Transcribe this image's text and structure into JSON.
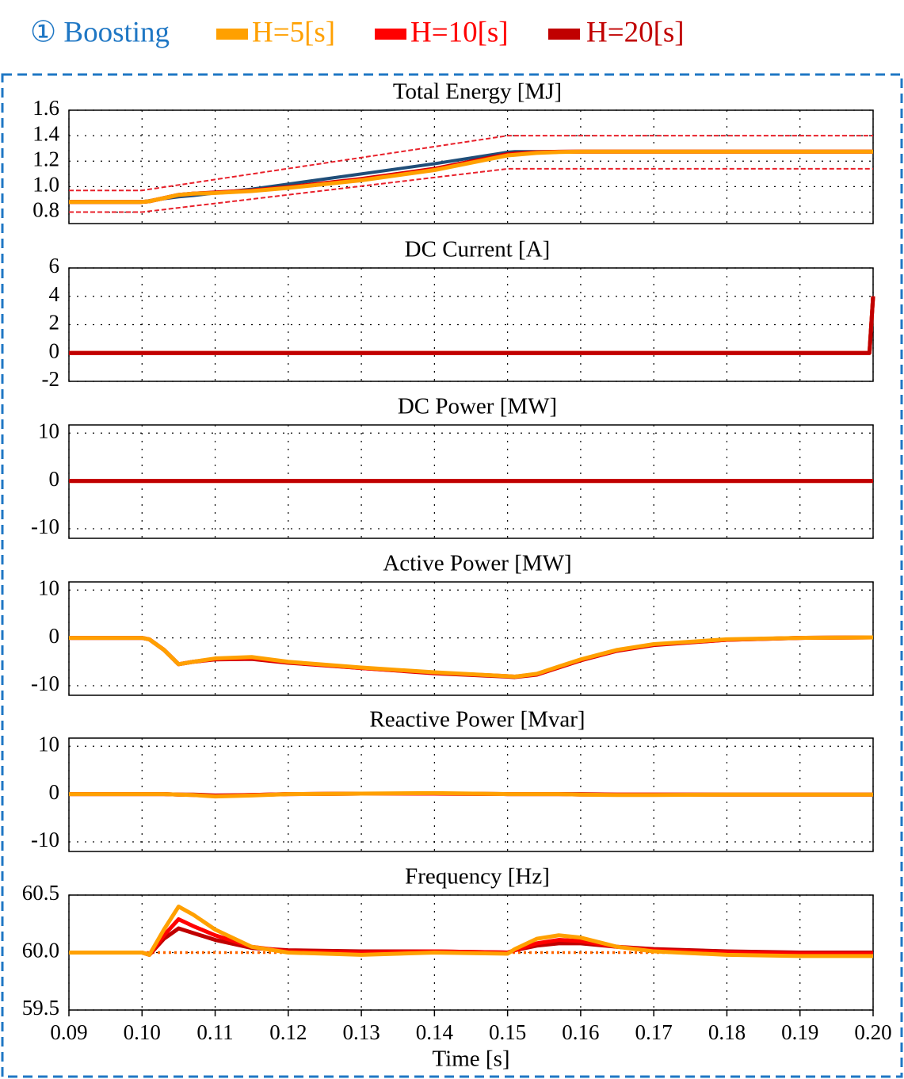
{
  "legend_title": "① Boosting",
  "chart_data": [
    {
      "type": "line",
      "title": "Total Energy [MJ]",
      "x": [
        0.09,
        0.1,
        0.101,
        0.103,
        0.105,
        0.107,
        0.11,
        0.115,
        0.12,
        0.13,
        0.14,
        0.15,
        0.151,
        0.154,
        0.157,
        0.16,
        0.165,
        0.17,
        0.18,
        0.19,
        0.2
      ],
      "series": [
        {
          "name": "H=5[s]",
          "color": "#ffa000",
          "values": [
            0.88,
            0.88,
            0.885,
            0.91,
            0.935,
            0.945,
            0.95,
            0.965,
            0.99,
            1.05,
            1.13,
            1.245,
            1.25,
            1.265,
            1.272,
            1.275,
            1.275,
            1.275,
            1.275,
            1.275,
            1.275
          ]
        },
        {
          "name": "H=10[s]",
          "color": "#ff0000",
          "values": [
            0.88,
            0.88,
            0.885,
            0.91,
            0.935,
            0.945,
            0.952,
            0.968,
            0.993,
            1.055,
            1.135,
            1.25,
            1.255,
            1.268,
            1.273,
            1.275,
            1.275,
            1.275,
            1.275,
            1.275,
            1.275
          ]
        },
        {
          "name": "H=20[s]",
          "color": "#c00000",
          "values": [
            0.88,
            0.88,
            0.885,
            0.91,
            0.935,
            0.945,
            0.954,
            0.97,
            0.996,
            1.06,
            1.14,
            1.255,
            1.26,
            1.27,
            1.274,
            1.275,
            1.275,
            1.275,
            1.275,
            1.275,
            1.275
          ]
        },
        {
          "color": "#1f4e79",
          "values": [
            0.88,
            0.88,
            0.89,
            0.905,
            0.92,
            0.93,
            0.95,
            0.98,
            1.02,
            1.1,
            1.18,
            1.27,
            1.275,
            1.275,
            1.275,
            1.275,
            1.275,
            1.275,
            1.275,
            1.275,
            1.275
          ]
        },
        {
          "color": "#e8202a",
          "style": "dashed",
          "values": [
            0.97,
            0.97,
            0.979,
            0.996,
            1.013,
            1.03,
            1.056,
            1.099,
            1.142,
            1.228,
            1.314,
            1.4,
            1.4,
            1.4,
            1.4,
            1.4,
            1.4,
            1.4,
            1.4,
            1.4,
            1.4
          ]
        },
        {
          "color": "#e8202a",
          "style": "dashed",
          "values": [
            0.8,
            0.8,
            0.807,
            0.82,
            0.834,
            0.848,
            0.868,
            0.902,
            0.936,
            1.004,
            1.072,
            1.14,
            1.14,
            1.14,
            1.14,
            1.14,
            1.14,
            1.14,
            1.14,
            1.14,
            1.14
          ]
        }
      ],
      "xlim": [
        0.09,
        0.2
      ],
      "xticks": [
        0.09,
        {
          "value": 0.1,
          "label": "0.10"
        },
        0.11,
        0.12,
        0.13,
        0.14,
        0.15,
        0.16,
        0.17,
        0.18,
        0.19,
        {
          "value": 0.2,
          "label": "0.20"
        }
      ],
      "ylim": [
        0.71,
        1.6
      ],
      "yticks": [
        0.8,
        {
          "value": 1,
          "label": "1.0"
        },
        1.2,
        1.4,
        1.6
      ],
      "grid": true
    },
    {
      "type": "line",
      "title": "DC Current [A]",
      "x": [
        0.09,
        0.1995,
        0.2
      ],
      "series": [
        {
          "color": "#c00000",
          "values": [
            0,
            0,
            4
          ]
        },
        {
          "color": "#ff0000",
          "values": [
            0,
            0,
            4
          ]
        },
        {
          "color": "#ffa000",
          "values": [
            0,
            0,
            4
          ]
        }
      ],
      "xlim": [
        0.09,
        0.2
      ],
      "xticks": [
        0.09,
        {
          "value": 0.1,
          "label": "0.10"
        },
        0.11,
        0.12,
        0.13,
        0.14,
        0.15,
        0.16,
        0.17,
        0.18,
        0.19,
        {
          "value": 0.2,
          "label": "0.20"
        }
      ],
      "ylim": [
        -2,
        6
      ],
      "yticks": [
        -2,
        0,
        2,
        4,
        6
      ],
      "grid": true
    },
    {
      "type": "line",
      "title": "DC Power [MW]",
      "x": [
        0.09,
        0.2
      ],
      "series": [
        {
          "color": "#c00000",
          "values": [
            0,
            0
          ]
        },
        {
          "color": "#ff0000",
          "values": [
            0,
            0
          ]
        },
        {
          "color": "#ffa000",
          "values": [
            0,
            0
          ]
        }
      ],
      "xlim": [
        0.09,
        0.2
      ],
      "xticks": [
        0.09,
        {
          "value": 0.1,
          "label": "0.10"
        },
        0.11,
        0.12,
        0.13,
        0.14,
        0.15,
        0.16,
        0.17,
        0.18,
        0.19,
        {
          "value": 0.2,
          "label": "0.20"
        }
      ],
      "ylim": [
        -12,
        11.7
      ],
      "yticks": [
        -10,
        0,
        10
      ],
      "grid": true
    },
    {
      "type": "line",
      "title": "Active Power [MW]",
      "x": [
        0.09,
        0.1,
        0.101,
        0.103,
        0.105,
        0.107,
        0.11,
        0.115,
        0.12,
        0.13,
        0.14,
        0.15,
        0.151,
        0.154,
        0.157,
        0.16,
        0.165,
        0.17,
        0.18,
        0.19,
        0.2
      ],
      "series": [
        {
          "color": "#ffa000",
          "values": [
            0,
            0,
            -0.3,
            -2.5,
            -5.5,
            -5,
            -4.3,
            -4,
            -5,
            -6.2,
            -7.2,
            -8,
            -8.1,
            -7.5,
            -6,
            -4.5,
            -2.5,
            -1.3,
            -0.3,
            0,
            0.1
          ]
        },
        {
          "color": "#ff0000",
          "values": [
            0,
            0,
            -0.3,
            -2.5,
            -5.5,
            -5,
            -4.4,
            -4.2,
            -5.1,
            -6.3,
            -7.3,
            -8,
            -8.1,
            -7.6,
            -6.1,
            -4.6,
            -2.6,
            -1.4,
            -0.4,
            0,
            0.1
          ]
        },
        {
          "color": "#c00000",
          "values": [
            0,
            0,
            -0.3,
            -2.5,
            -5.5,
            -5,
            -4.5,
            -4.4,
            -5.2,
            -6.3,
            -7.4,
            -8.1,
            -8.2,
            -7.7,
            -6.2,
            -4.7,
            -2.7,
            -1.5,
            -0.4,
            0,
            0.1
          ]
        }
      ],
      "xlim": [
        0.09,
        0.2
      ],
      "xticks": [
        0.09,
        {
          "value": 0.1,
          "label": "0.10"
        },
        0.11,
        0.12,
        0.13,
        0.14,
        0.15,
        0.16,
        0.17,
        0.18,
        0.19,
        {
          "value": 0.2,
          "label": "0.20"
        }
      ],
      "ylim": [
        -12,
        11.7
      ],
      "yticks": [
        -10,
        0,
        10
      ],
      "grid": true
    },
    {
      "type": "line",
      "title": "Reactive Power [Mvar]",
      "x": [
        0.09,
        0.1,
        0.101,
        0.103,
        0.105,
        0.107,
        0.11,
        0.115,
        0.12,
        0.13,
        0.14,
        0.15,
        0.151,
        0.154,
        0.157,
        0.16,
        0.165,
        0.17,
        0.18,
        0.19,
        0.2
      ],
      "series": [
        {
          "color": "#ffa000",
          "values": [
            0,
            0,
            0,
            0,
            -0.1,
            -0.2,
            -0.5,
            -0.3,
            0,
            0.1,
            0.2,
            0,
            0,
            0,
            0,
            -0.1,
            -0.2,
            -0.2,
            -0.1,
            -0.1,
            -0.1
          ]
        },
        {
          "color": "#ff0000",
          "values": [
            0,
            0,
            0,
            0,
            -0.1,
            -0.2,
            -0.4,
            -0.2,
            0,
            0.1,
            0.1,
            0,
            0,
            0,
            0,
            -0.1,
            -0.1,
            -0.1,
            -0.1,
            -0.1,
            -0.1
          ]
        },
        {
          "color": "#c00000",
          "values": [
            0,
            0,
            0,
            0,
            -0.1,
            -0.1,
            -0.3,
            -0.2,
            0,
            0.1,
            0.1,
            0,
            0,
            0,
            0,
            0,
            -0.1,
            -0.1,
            -0.1,
            -0.1,
            -0.1
          ]
        }
      ],
      "xlim": [
        0.09,
        0.2
      ],
      "xticks": [
        0.09,
        {
          "value": 0.1,
          "label": "0.10"
        },
        0.11,
        0.12,
        0.13,
        0.14,
        0.15,
        0.16,
        0.17,
        0.18,
        0.19,
        {
          "value": 0.2,
          "label": "0.20"
        }
      ],
      "ylim": [
        -12,
        11.7
      ],
      "yticks": [
        -10,
        0,
        10
      ],
      "grid": true
    },
    {
      "type": "line",
      "title": "Frequency [Hz]",
      "xlabel": "Time [s]",
      "x": [
        0.09,
        0.1,
        0.101,
        0.103,
        0.105,
        0.107,
        0.11,
        0.115,
        0.12,
        0.13,
        0.14,
        0.15,
        0.151,
        0.154,
        0.157,
        0.16,
        0.165,
        0.17,
        0.18,
        0.19,
        0.2
      ],
      "series": [
        {
          "color": "#ffa000",
          "values": [
            60,
            60,
            59.98,
            60.2,
            60.4,
            60.33,
            60.2,
            60.05,
            60.0,
            59.98,
            60.0,
            59.99,
            60.03,
            60.12,
            60.15,
            60.13,
            60.05,
            60.01,
            59.98,
            59.97,
            59.97
          ]
        },
        {
          "color": "#ff0000",
          "values": [
            60,
            60,
            59.98,
            60.15,
            60.29,
            60.23,
            60.15,
            60.05,
            60.01,
            60,
            60.01,
            60,
            60.02,
            60.08,
            60.11,
            60.1,
            60.05,
            60.02,
            60,
            59.99,
            59.99
          ]
        },
        {
          "color": "#c00000",
          "values": [
            60,
            60,
            59.98,
            60.12,
            60.21,
            60.17,
            60.11,
            60.04,
            60.02,
            60.01,
            60.01,
            60,
            60.02,
            60.06,
            60.08,
            60.08,
            60.05,
            60.03,
            60.01,
            60,
            60
          ]
        }
      ],
      "reference_line": {
        "value": 60,
        "color": "#ff6600"
      },
      "xlim": [
        0.09,
        0.2
      ],
      "xticks": [
        0.09,
        {
          "value": 0.1,
          "label": "0.10"
        },
        0.11,
        0.12,
        0.13,
        0.14,
        0.15,
        0.16,
        0.17,
        0.18,
        0.19,
        {
          "value": 0.2,
          "label": "0.20"
        }
      ],
      "ylim": [
        59.5,
        60.5
      ],
      "yticks": [
        59.5,
        {
          "value": 60,
          "label": "60.0"
        },
        60.5
      ],
      "grid": true
    }
  ]
}
